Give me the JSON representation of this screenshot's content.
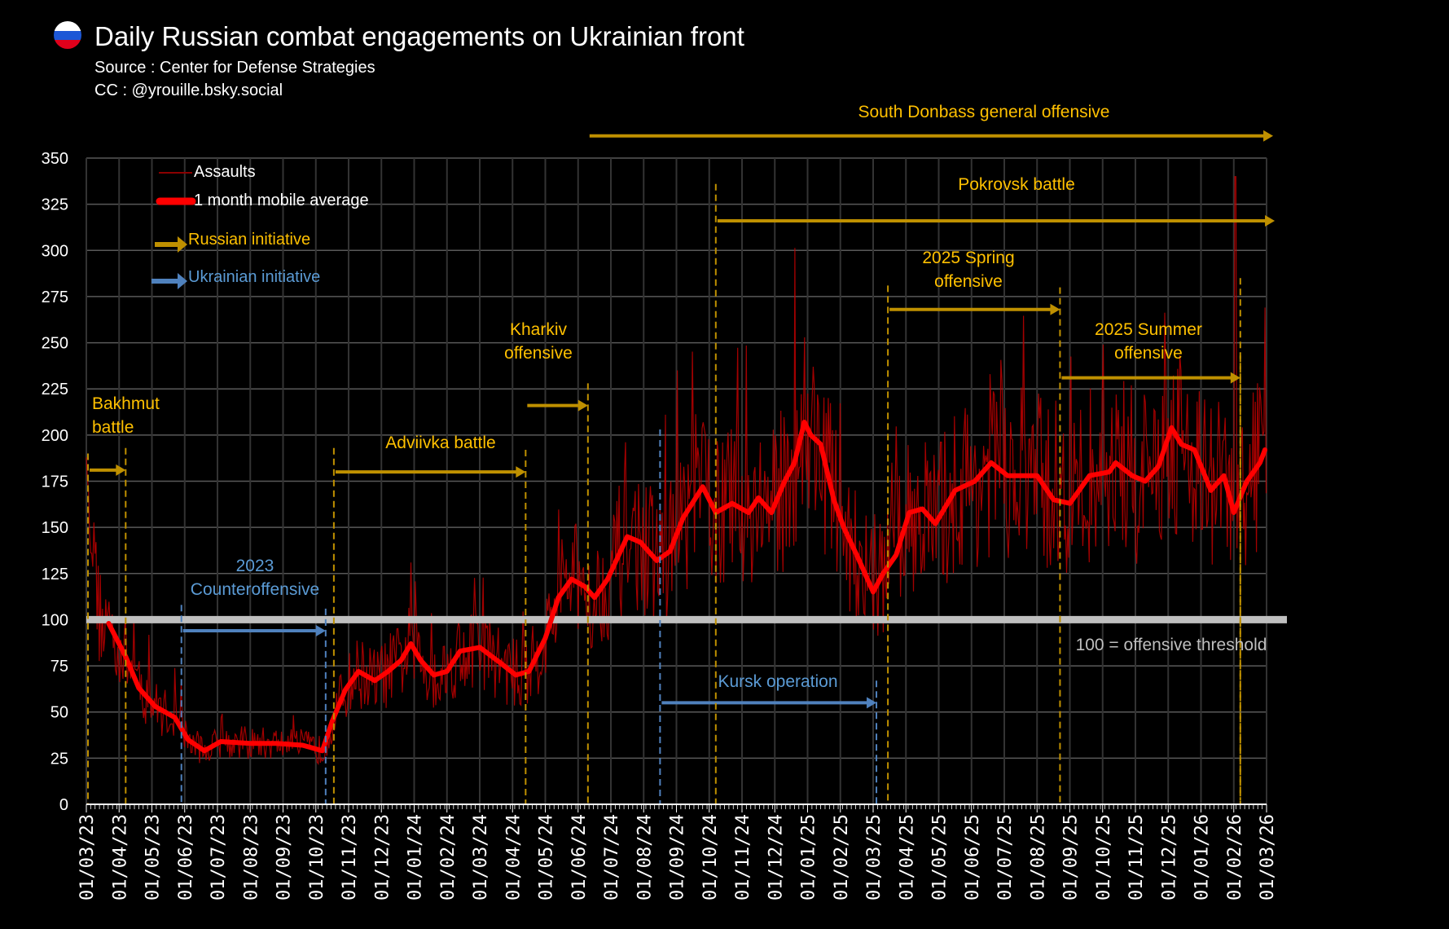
{
  "header": {
    "title": "Daily Russian combat engagements on Ukrainian front",
    "source": "Source : Center for Defense Strategies",
    "credit": "CC : @yrouille.bsky.social",
    "flag_icon": "russia-flag-icon"
  },
  "legend": {
    "assaults": "Assaults",
    "average": "1 month mobile average",
    "russian": "Russian initiative",
    "ukrainian": "Ukrainian initiative"
  },
  "colors": {
    "background": "#000000",
    "assaults": "#c00000",
    "average": "#ff0000",
    "russian": "#bf9000",
    "russian_text": "#ffc000",
    "ukrainian": "#4f81bd",
    "ukrainian_text": "#5b9bd5",
    "threshold": "#bfbfbf",
    "grid": "#3a3a3a"
  },
  "annotations": {
    "south_donbass": "South Donbass general offensive",
    "pokrovsk": "Pokrovsk battle",
    "spring_1": "2025 Spring",
    "spring_2": "offensive",
    "kharkiv_1": "Kharkiv",
    "kharkiv_2": "offensive",
    "summer_1": "2025 Summer",
    "summer_2": "offensive",
    "bakhmut_1": "Bakhmut",
    "bakhmut_2": "battle",
    "avdiivka": "Adviivka battle",
    "counter_1": "2023",
    "counter_2": "Counteroffensive",
    "kursk": "Kursk operation",
    "threshold": "100 = offensive threshold"
  },
  "chart_data": {
    "type": "line",
    "title": "Daily Russian combat engagements on Ukrainian front",
    "xlabel": "",
    "ylabel": "",
    "ylim": [
      0,
      350
    ],
    "yticks": [
      0,
      25,
      50,
      75,
      100,
      125,
      150,
      175,
      200,
      225,
      250,
      275,
      300,
      325,
      350
    ],
    "x_unit": "months since 01/03/23",
    "xlim": [
      0,
      36
    ],
    "xtick_labels": [
      "01/03/23",
      "01/04/23",
      "01/05/23",
      "01/06/23",
      "01/07/23",
      "01/08/23",
      "01/09/23",
      "01/10/23",
      "01/11/23",
      "01/12/23",
      "01/01/24",
      "01/02/24",
      "01/03/24",
      "01/04/24",
      "01/05/24",
      "01/06/24",
      "01/07/24",
      "01/08/24",
      "01/09/24",
      "01/10/24",
      "01/11/24",
      "01/12/24",
      "01/01/25",
      "01/02/25",
      "01/03/25",
      "01/04/25",
      "01/05/25",
      "01/06/25",
      "01/07/25",
      "01/08/25",
      "01/09/25",
      "01/10/25",
      "01/11/25",
      "01/12/25",
      "01/01/26",
      "01/02/26",
      "01/03/26"
    ],
    "grid": true,
    "legend_position": "top-left",
    "threshold": 100,
    "series": [
      {
        "name": "1 month mobile average",
        "x": [
          0.68,
          1.2,
          1.6,
          2.1,
          2.7,
          3.1,
          3.6,
          4.1,
          5.0,
          5.8,
          6.6,
          7.2,
          7.5,
          7.9,
          8.3,
          8.8,
          9.2,
          9.6,
          9.9,
          10.2,
          10.6,
          11.0,
          11.4,
          12.0,
          12.6,
          13.1,
          13.5,
          14.0,
          14.4,
          14.8,
          15.2,
          15.5,
          15.9,
          16.5,
          16.9,
          17.4,
          17.8,
          18.2,
          18.8,
          19.2,
          19.7,
          20.2,
          20.5,
          20.9,
          21.3,
          21.6,
          21.9,
          22.1,
          22.4,
          22.8,
          23.1,
          23.5,
          24.0,
          24.3,
          24.7,
          25.1,
          25.5,
          25.9,
          26.5,
          27.1,
          27.6,
          28.1,
          28.6,
          29.0,
          29.5,
          30.0,
          30.6,
          31.2,
          31.4,
          31.9,
          32.3,
          32.7,
          33.1,
          33.4,
          33.8,
          34.3,
          34.7,
          35.0,
          35.4,
          35.8,
          35.95
        ],
        "values": [
          98,
          80,
          63,
          53,
          47,
          35,
          29,
          34,
          33,
          33,
          32,
          29,
          45,
          62,
          72,
          67,
          72,
          78,
          87,
          78,
          70,
          72,
          83,
          85,
          77,
          70,
          72,
          90,
          112,
          122,
          118,
          112,
          122,
          145,
          142,
          132,
          137,
          155,
          172,
          158,
          163,
          158,
          166,
          158,
          175,
          185,
          207,
          200,
          195,
          165,
          150,
          135,
          115,
          125,
          135,
          158,
          160,
          152,
          170,
          175,
          185,
          178,
          178,
          178,
          165,
          163,
          178,
          180,
          185,
          178,
          175,
          183,
          204,
          195,
          192,
          170,
          178,
          158,
          175,
          185,
          192
        ]
      },
      {
        "name": "Assaults",
        "note": "daily values fluctuating around the average",
        "max_value": 340
      }
    ],
    "periods": [
      {
        "name": "Bakhmut battle",
        "side": "russian",
        "start": 0.05,
        "end": 1.2,
        "arrow_level": 181,
        "line_top": 190
      },
      {
        "name": "2023 Counteroffensive",
        "side": "ukrainian",
        "start": 2.9,
        "end": 7.3,
        "arrow_level": 94,
        "line_top": 108
      },
      {
        "name": "Adviivka battle",
        "side": "russian",
        "start": 7.55,
        "end": 13.4,
        "arrow_level": 180,
        "line_top": 193
      },
      {
        "name": "Kharkiv offensive",
        "side": "russian",
        "start": 13.4,
        "end": 15.3,
        "arrow_level": 216,
        "line_top": 220
      },
      {
        "name": "South Donbass general offensive",
        "side": "russian",
        "start": 15.3,
        "end": 36.2,
        "arrow_level": 362,
        "line_top": 378
      },
      {
        "name": "Kursk operation",
        "side": "ukrainian",
        "start": 17.5,
        "end": 24.1,
        "arrow_level": 55,
        "line_top": 203
      },
      {
        "name": "Pokrovsk battle",
        "side": "russian",
        "start": 19.2,
        "end": 36.25,
        "arrow_level": 316,
        "line_top": 336
      },
      {
        "name": "2025 Spring offensive",
        "side": "russian",
        "start": 24.45,
        "end": 29.7,
        "arrow_level": 268,
        "line_top": 281
      },
      {
        "name": "2025 Summer offensive",
        "side": "russian",
        "start": 29.7,
        "end": 35.2,
        "arrow_level": 231,
        "line_top": 281
      }
    ]
  }
}
